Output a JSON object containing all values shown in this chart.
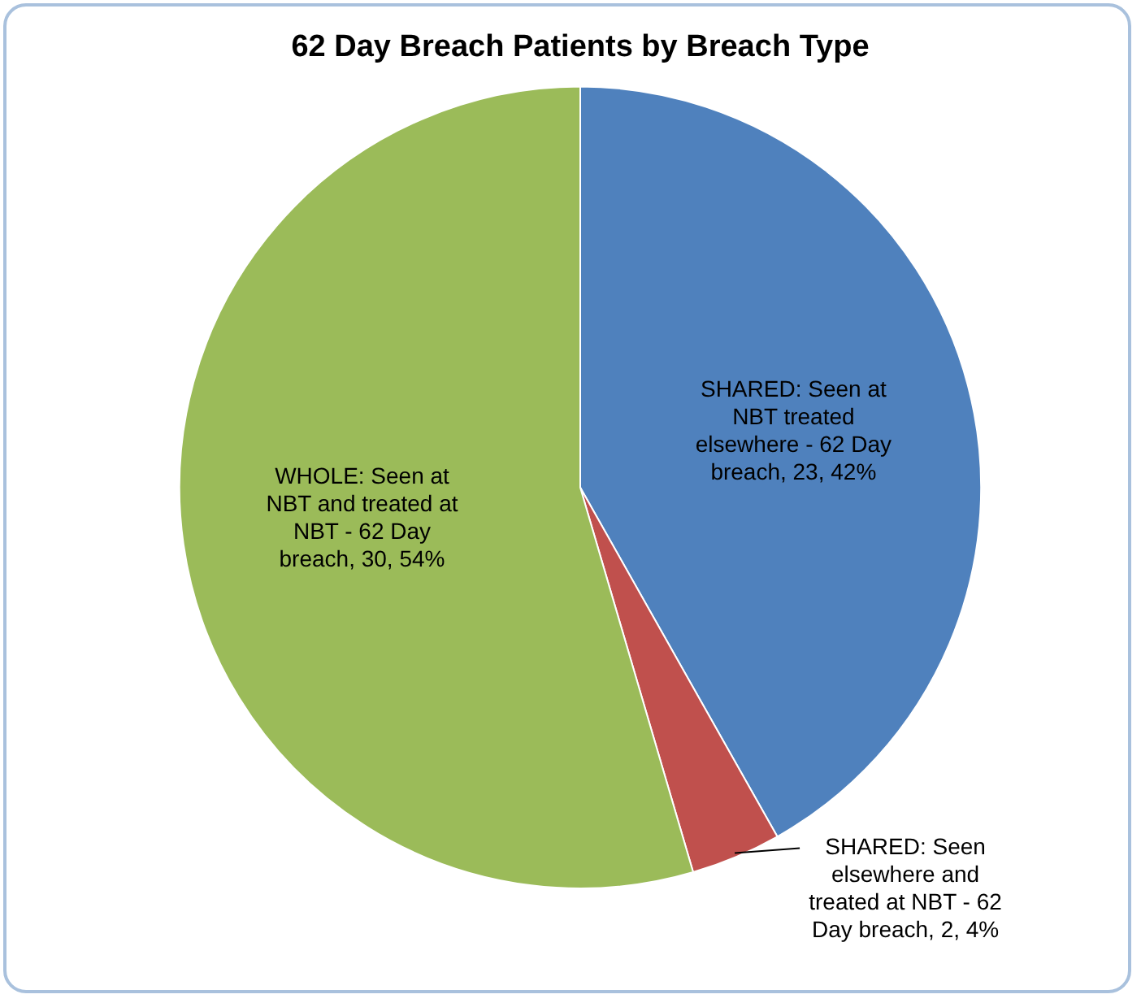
{
  "chart_data": {
    "type": "pie",
    "title": "62 Day Breach Patients by Breach Type",
    "categories": [
      "SHARED: Seen at NBT treated elsewhere - 62 Day breach",
      "SHARED: Seen elsewhere and treated at NBT - 62 Day breach",
      "WHOLE: Seen at NBT and treated at NBT - 62 Day breach"
    ],
    "values": [
      23,
      2,
      30
    ],
    "colors": [
      "#4f81bd",
      "#c0504d",
      "#9bbb59"
    ],
    "value_labels": [
      "23, 42%",
      "2, 4%",
      "30, 54%"
    ],
    "legend": false
  }
}
